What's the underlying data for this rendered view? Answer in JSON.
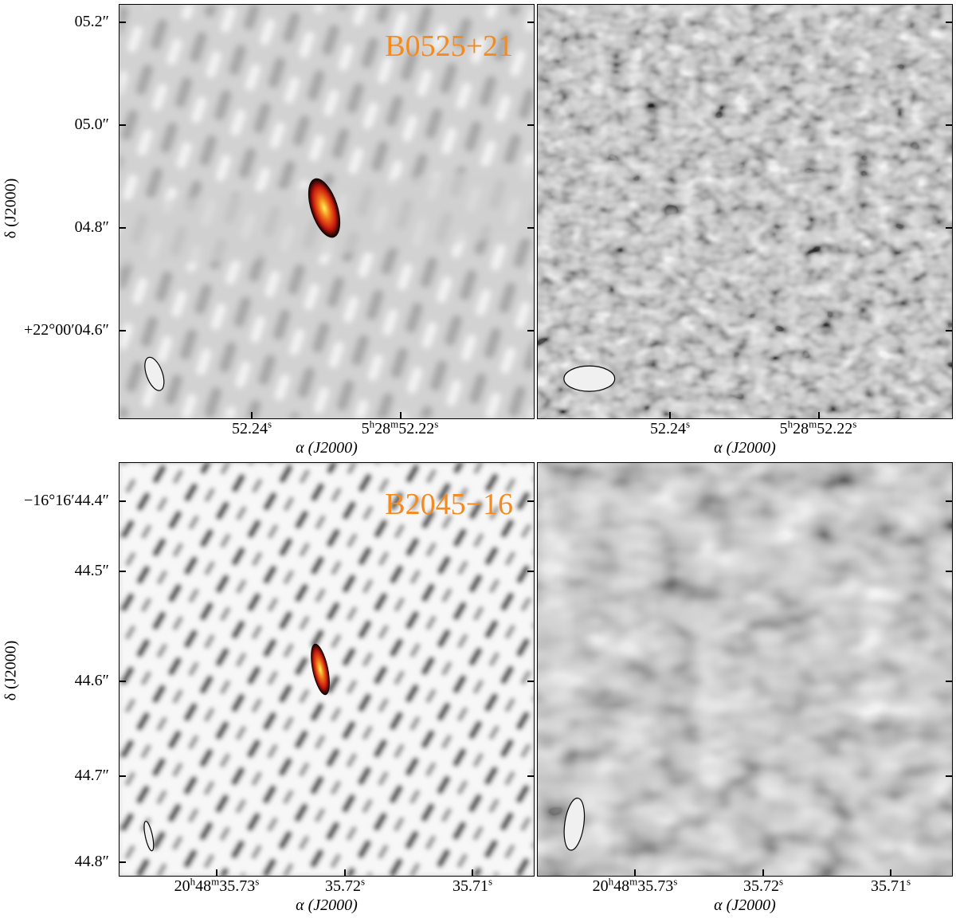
{
  "figure": {
    "panels": [
      {
        "id": "top-left",
        "source_label": "B0525+21",
        "kind": "clean",
        "stripe_angle_deg": 18,
        "beam": "ellipse-tilted"
      },
      {
        "id": "top-right",
        "source_label": "",
        "kind": "residual",
        "beam": "ellipse-horizontal"
      },
      {
        "id": "bottom-left",
        "source_label": "B2045−16",
        "kind": "clean",
        "stripe_angle_deg": 18,
        "beam": "ellipse-narrow"
      },
      {
        "id": "bottom-right",
        "source_label": "",
        "kind": "residual",
        "beam": "ellipse-vertical"
      }
    ],
    "top": {
      "y_ticks": [
        "05.2″",
        "05.0″",
        "04.8″",
        "+22°00′04.6″"
      ],
      "x_ticks": [
        {
          "main": "52.24",
          "sup": "s"
        },
        {
          "main": "5",
          "h": "h",
          "m_val": "28",
          "m": "m",
          "s_val": "52.22",
          "s": "s"
        }
      ],
      "x_title": "α (J2000)",
      "y_title": "δ (J2000)"
    },
    "bottom": {
      "y_ticks": [
        "−16°16′44.4″",
        "44.5″",
        "44.6″",
        "44.7″",
        "44.8″"
      ],
      "x_ticks_left": [
        {
          "prefix": "20",
          "h": "h",
          "m_val": "48",
          "m": "m",
          "s_val": "35.73",
          "s": "s"
        },
        {
          "main": "35.72",
          "sup": "s"
        },
        {
          "main": "35.71",
          "sup": "s"
        }
      ],
      "x_title": "α (J2000)",
      "y_title": "δ (J2000)"
    },
    "colors": {
      "label_orange": "#f58a1f",
      "peak_core": "#fff35a",
      "peak_mid": "#e8341c",
      "peak_edge": "#000000"
    }
  }
}
